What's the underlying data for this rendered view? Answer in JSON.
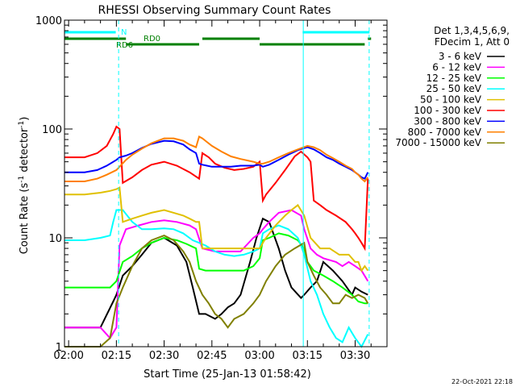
{
  "chart_data": {
    "type": "line",
    "title": "RHESSI Observing Summary Count Rates",
    "xlabel": "Start Time (25-Jan-13 01:58:42)",
    "ylabel_main": "Count Rate (s",
    "ylabel_sup1": "-1",
    "ylabel_mid": " detector",
    "ylabel_sup2": "-1",
    "ylabel_end": ")",
    "yscale": "log",
    "x_range_min": [
      118.7,
      220
    ],
    "ylim": [
      1,
      1000
    ],
    "x_ticks": [
      {
        "m": 120,
        "label": "02:00"
      },
      {
        "m": 135,
        "label": "02:15"
      },
      {
        "m": 150,
        "label": "02:30"
      },
      {
        "m": 165,
        "label": "02:45"
      },
      {
        "m": 180,
        "label": "03:00"
      },
      {
        "m": 195,
        "label": "03:15"
      },
      {
        "m": 210,
        "label": "03:30"
      }
    ],
    "y_ticks": [
      {
        "v": 1,
        "label": "1"
      },
      {
        "v": 10,
        "label": "10"
      },
      {
        "v": 100,
        "label": "100"
      },
      {
        "v": 1000,
        "label": "1000"
      }
    ],
    "legend_title_1": "Det 1,3,4,5,6,9,",
    "legend_title_2": "FDecim 1, Att 0",
    "legend_placement": "right",
    "series": [
      {
        "name": "3 - 6 keV",
        "color": "#000000",
        "x": [
          118.7,
          130,
          134,
          135,
          137,
          140,
          143,
          146,
          150,
          154,
          157,
          159,
          161,
          163,
          166,
          168,
          170,
          172,
          174,
          177,
          179,
          181,
          183,
          186,
          188,
          190,
          193,
          194,
          196,
          198,
          200,
          203,
          206,
          209,
          210,
          212,
          214
        ],
        "y": [
          1.5,
          1.5,
          2.6,
          3,
          4.5,
          5.5,
          7,
          9,
          10,
          8.5,
          6,
          3.5,
          2,
          2,
          1.8,
          2,
          2.3,
          2.5,
          3,
          6,
          10,
          15,
          14,
          8,
          5,
          3.5,
          2.8,
          3,
          3.5,
          4,
          6,
          5,
          4,
          3,
          3.5,
          3.2,
          3
        ]
      },
      {
        "name": "6 - 12 keV",
        "color": "#ff00ff",
        "x": [
          118.7,
          125,
          130,
          133,
          135,
          136,
          138,
          142,
          146,
          150,
          154,
          158,
          160,
          162,
          166,
          170,
          174,
          178,
          180,
          181,
          183,
          186,
          190,
          193,
          194,
          196,
          198,
          200,
          204,
          206,
          208,
          210,
          212,
          214
        ],
        "y": [
          1.5,
          1.5,
          1.5,
          1.2,
          1.5,
          8.5,
          12,
          13,
          14,
          14.5,
          14,
          13,
          12,
          8,
          7.5,
          7.5,
          7.5,
          10,
          11,
          12,
          14,
          17,
          18,
          16,
          12,
          8,
          7,
          6.5,
          6,
          5.5,
          6,
          5.5,
          5,
          4
        ]
      },
      {
        "name": "12 - 25 keV",
        "color": "#00ff00",
        "x": [
          118.7,
          125,
          130,
          133,
          135,
          137,
          140,
          143,
          146,
          150,
          154,
          157,
          160,
          161,
          163,
          166,
          169,
          172,
          175,
          178,
          180,
          181,
          183,
          186,
          189,
          192,
          194,
          195,
          197,
          200,
          203,
          206,
          209,
          211,
          213,
          214
        ],
        "y": [
          3.5,
          3.5,
          3.5,
          3.5,
          4,
          6,
          6.8,
          8,
          9,
          10,
          9.5,
          8.8,
          8,
          5.2,
          5,
          5,
          5,
          5,
          5,
          5.5,
          6.5,
          9.5,
          10,
          11,
          10.5,
          9.5,
          8,
          6,
          5,
          4.5,
          4,
          3.5,
          3,
          2.6,
          2.5,
          2.5
        ]
      },
      {
        "name": "25 - 50 keV",
        "color": "#00ffff",
        "x": [
          118.7,
          125,
          130,
          133,
          134,
          135,
          137,
          140,
          143,
          146,
          150,
          153,
          156,
          159,
          161,
          163,
          166,
          169,
          172,
          175,
          178,
          180,
          181,
          183,
          186,
          189,
          192,
          193,
          194,
          196,
          198,
          200,
          202,
          204,
          206,
          208,
          210,
          212,
          214
        ],
        "y": [
          9.5,
          9.5,
          10,
          10.5,
          14,
          18,
          18,
          14,
          12,
          12,
          12.2,
          12,
          11,
          9.5,
          9,
          8.5,
          7.5,
          7,
          6.8,
          7,
          7.5,
          8,
          11,
          12,
          13,
          12,
          10,
          8.5,
          7,
          4,
          3,
          2,
          1.5,
          1.2,
          1.1,
          1.5,
          1.2,
          1,
          1.3
        ]
      },
      {
        "name": "50 - 100 keV",
        "color": "#e0c000",
        "x": [
          118.7,
          125,
          130,
          133,
          135,
          136,
          137,
          140,
          143,
          146,
          150,
          153,
          156,
          158,
          160,
          161,
          162,
          165,
          170,
          175,
          178,
          180,
          181,
          182,
          185,
          188,
          190,
          192,
          194,
          196,
          199,
          202,
          205,
          208,
          210,
          211,
          212,
          213,
          214
        ],
        "y": [
          25,
          25,
          26,
          27,
          28,
          29,
          14,
          15,
          16,
          17,
          18,
          17,
          16,
          15,
          14,
          14,
          8,
          8,
          8,
          8,
          8,
          8,
          9,
          10,
          13,
          16,
          18,
          20,
          16,
          10,
          8,
          8,
          7,
          7,
          6,
          6,
          5,
          5.5,
          5
        ]
      },
      {
        "name": "100 - 300 keV",
        "color": "#ff0000",
        "x": [
          118.7,
          125,
          129,
          132,
          134,
          135,
          136,
          137,
          140,
          143,
          146,
          150,
          154,
          158,
          161,
          162,
          164,
          166,
          169,
          172,
          175,
          178,
          180,
          181,
          182,
          185,
          188,
          191,
          193,
          195,
          196,
          197,
          199,
          200,
          201,
          204,
          207,
          209,
          210,
          211,
          212,
          213,
          214
        ],
        "y": [
          55,
          55,
          60,
          70,
          90,
          105,
          100,
          32,
          36,
          42,
          47,
          50,
          46,
          40,
          35,
          60,
          55,
          48,
          44,
          42,
          43,
          45,
          50,
          22,
          25,
          32,
          42,
          56,
          62,
          55,
          50,
          22,
          20,
          19,
          18,
          16,
          14,
          12,
          11,
          10,
          9,
          8,
          35
        ]
      },
      {
        "name": "300 - 800 keV",
        "color": "#0000ff",
        "x": [
          118.7,
          125,
          129,
          132,
          135,
          136,
          138,
          140,
          143,
          146,
          150,
          153,
          156,
          158,
          160,
          161,
          162,
          165,
          168,
          171,
          174,
          178,
          180,
          181,
          183,
          186,
          189,
          192,
          195,
          197,
          199,
          201,
          203,
          205,
          207,
          209,
          210,
          211,
          212,
          213,
          214
        ],
        "y": [
          40,
          40,
          42,
          46,
          52,
          55,
          57,
          60,
          67,
          73,
          78,
          77,
          72,
          65,
          60,
          48,
          47,
          45,
          45,
          45,
          46,
          46,
          47,
          45,
          47,
          52,
          58,
          64,
          68,
          65,
          60,
          55,
          52,
          48,
          45,
          42,
          40,
          38,
          36,
          35,
          40
        ]
      },
      {
        "name": "800 - 7000 keV",
        "color": "#ff8000",
        "x": [
          118.7,
          125,
          129,
          132,
          135,
          136,
          138,
          140,
          143,
          146,
          150,
          153,
          156,
          158,
          160,
          161,
          162,
          165,
          168,
          171,
          174,
          178,
          180,
          181,
          183,
          186,
          189,
          192,
          195,
          197,
          199,
          201,
          203,
          205,
          207,
          209,
          210,
          211,
          212,
          213,
          214
        ],
        "y": [
          33,
          33,
          35,
          38,
          42,
          45,
          52,
          58,
          66,
          74,
          82,
          82,
          78,
          72,
          68,
          85,
          82,
          70,
          62,
          56,
          53,
          50,
          48,
          48,
          50,
          55,
          60,
          65,
          70,
          68,
          64,
          58,
          54,
          50,
          46,
          43,
          40,
          38,
          35,
          33,
          36
        ]
      },
      {
        "name": "7000 - 15000 keV",
        "color": "#808000",
        "x": [
          118.7,
          125,
          130,
          133,
          135,
          137,
          140,
          143,
          146,
          150,
          153,
          156,
          158,
          160,
          162,
          164,
          166,
          168,
          170,
          172,
          175,
          178,
          180,
          182,
          185,
          188,
          191,
          194,
          195,
          197,
          199,
          201,
          203,
          205,
          207,
          209,
          211,
          213,
          214
        ],
        "y": [
          0.8,
          0.8,
          0.8,
          1.2,
          2.5,
          3.5,
          5.5,
          8,
          9.5,
          10.5,
          9.5,
          7.5,
          6,
          4,
          3,
          2.5,
          2,
          1.8,
          1.5,
          1.8,
          2,
          2.5,
          3,
          4,
          5.5,
          7,
          8,
          9,
          6,
          4.5,
          3.5,
          3,
          2.5,
          2.5,
          3,
          2.8,
          3,
          2.8,
          2.5
        ]
      }
    ],
    "bars": [
      {
        "label": "N",
        "color": "#00ffff",
        "segments": [
          [
            118.7,
            134.8
          ],
          [
            193.5,
            214.5
          ]
        ],
        "level": 1
      },
      {
        "label": "RD0",
        "color": "#008000",
        "segments": [
          [
            118.7,
            138
          ],
          [
            162,
            180
          ],
          [
            214,
            215
          ]
        ],
        "level": 2
      },
      {
        "label": "RD6",
        "color": "#008000",
        "segments": [
          [
            138,
            161
          ],
          [
            180,
            213
          ]
        ],
        "level": 3
      }
    ],
    "vlines": [
      {
        "m": 135.7,
        "color": "#00ffff",
        "style": "dashed"
      },
      {
        "m": 193.7,
        "color": "#00ffff",
        "style": "solid"
      },
      {
        "m": 214.4,
        "color": "#00ffff",
        "style": "dashed"
      }
    ],
    "grid": false
  },
  "footer": {
    "timestamp": "22-Oct-2021 22:18"
  }
}
